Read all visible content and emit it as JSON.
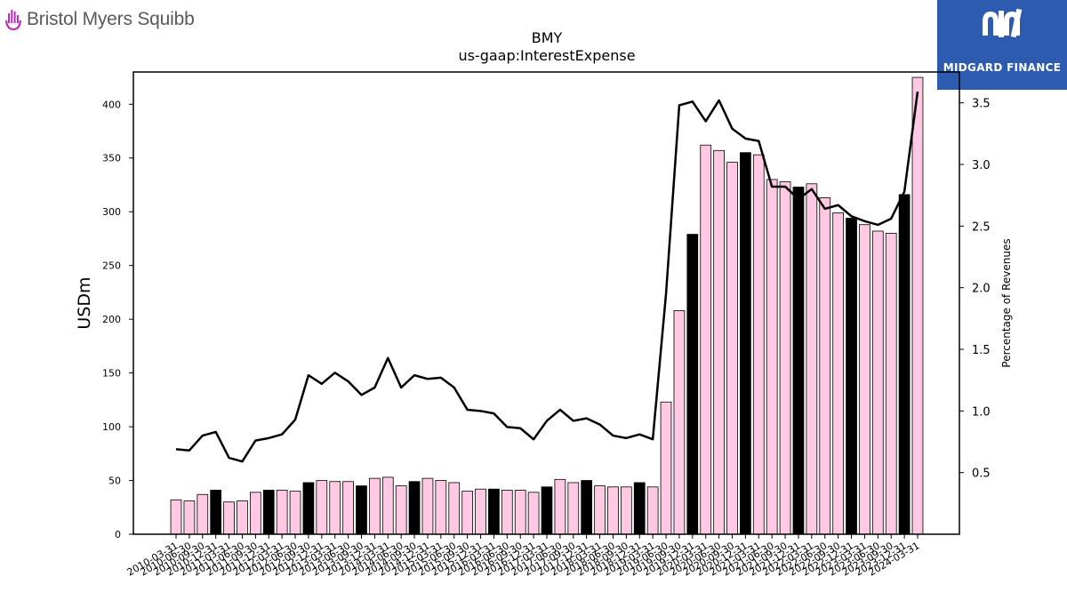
{
  "branding": {
    "company_logo_text": "Bristol Myers Squibb",
    "watermark_text": "MIDGARD FINANCE",
    "company_accent": "#be2bbb",
    "watermark_bg": "#2d5bb0"
  },
  "chart_data": {
    "type": "bar",
    "title": "BMY",
    "subtitle": "us-gaap:InterestExpense",
    "ylabel": "USDm",
    "y2label": "Percentage of Revenues",
    "ylim": [
      0,
      430
    ],
    "y2lim": [
      0.0,
      3.75
    ],
    "yticks": [
      0,
      50,
      100,
      150,
      200,
      250,
      300,
      350,
      400
    ],
    "y2ticks": [
      0.5,
      1.0,
      1.5,
      2.0,
      2.5,
      3.0,
      3.5
    ],
    "y2tick_labels": [
      "0.5",
      "1.0",
      "1.5",
      "2.0",
      "2.5",
      "3.0",
      "3.5"
    ],
    "grid": false,
    "bar_color_quarter": "#ffc8e3",
    "bar_color_fiscal_year_end": "#000000",
    "line_color": "#000000",
    "categories": [
      "2010-03-31",
      "2010-06-30",
      "2010-09-30",
      "2010-12-31",
      "2011-03-31",
      "2011-06-30",
      "2011-09-30",
      "2011-12-31",
      "2012-03-31",
      "2012-06-30",
      "2012-09-30",
      "2012-12-31",
      "2013-03-31",
      "2013-06-30",
      "2013-09-30",
      "2013-12-31",
      "2014-03-31",
      "2014-06-30",
      "2014-09-30",
      "2014-12-31",
      "2015-03-31",
      "2015-06-30",
      "2015-09-30",
      "2015-12-31",
      "2016-03-31",
      "2016-06-30",
      "2016-09-30",
      "2016-12-31",
      "2017-03-31",
      "2017-06-30",
      "2017-09-30",
      "2017-12-31",
      "2018-03-31",
      "2018-06-30",
      "2018-09-30",
      "2018-12-31",
      "2019-03-31",
      "2019-06-30",
      "2019-09-30",
      "2019-12-31",
      "2020-03-31",
      "2020-06-30",
      "2020-09-30",
      "2020-12-31",
      "2021-03-31",
      "2021-06-30",
      "2021-09-30",
      "2021-12-31",
      "2022-03-31",
      "2022-06-30",
      "2022-09-30",
      "2022-12-31",
      "2023-03-31",
      "2023-06-30",
      "2023-09-30",
      "2023-12-31",
      "2024-03-31"
    ],
    "tick_labels": [
      "2010-03-31",
      "2010-06-30",
      "2010-09-30",
      "2010-12-31",
      "2011-03-31",
      "2011-06-30",
      "2011-09-30",
      "2011-12-31",
      "2012-03-31",
      "2012-06-30",
      "2012-09-30",
      "2012-12-31",
      "2013-03-31",
      "2013-06-30",
      "2013-09-30",
      "2013-12-31",
      "2014-03-31",
      "2014-06-30",
      "2014-09-30",
      "2014-12-31",
      "2015-03-31",
      "2015-06-30",
      "2015-09-30",
      "2015-12-31",
      "2016-03-31",
      "2016-06-30",
      "2016-09-30",
      "2016-12-31",
      "2017-03-31",
      "2017-06-30",
      "2017-09-30",
      "2017-12-31",
      "2018-03-31",
      "2018-06-30",
      "2018-09-30",
      "2018-12-31",
      "2019-03-31",
      "2019-06-30",
      "2019-09-30",
      "2019-12-31",
      "2020-03-31",
      "2020-06-30",
      "2020-09-30",
      "2020-12-31",
      "2021-03-31",
      "2021-06-30",
      "2021-09-30",
      "2021-12-31",
      "2022-03-31",
      "2022-06-30",
      "2022-09-30",
      "2022-12-31",
      "2023-03-31",
      "2023-06-30",
      "2023-09-30",
      "2023-12-31",
      "2024-03-31"
    ],
    "fiscal_year_end": [
      false,
      false,
      false,
      true,
      false,
      false,
      false,
      true,
      false,
      false,
      true,
      false,
      false,
      false,
      true,
      false,
      false,
      false,
      true,
      false,
      false,
      false,
      false,
      false,
      true,
      false,
      false,
      false,
      true,
      false,
      false,
      true,
      false,
      false,
      false,
      true,
      false,
      false,
      false,
      true,
      false,
      false,
      false,
      true,
      false,
      false,
      false,
      true,
      false,
      false,
      false,
      true,
      false,
      false,
      false,
      true,
      false
    ],
    "series": [
      {
        "values": [
          32,
          31,
          37,
          41,
          30,
          31,
          39,
          41,
          41,
          40,
          48,
          50,
          49,
          49,
          45,
          52,
          53,
          45,
          49,
          52,
          50,
          48,
          40,
          42,
          42,
          41,
          41,
          39,
          44,
          51,
          48,
          50,
          45,
          44,
          44,
          48,
          44,
          123,
          208,
          279,
          362,
          357,
          346,
          355,
          353,
          330,
          328,
          323,
          326,
          313,
          299,
          294,
          288,
          282,
          280,
          316,
          425
        ]
      },
      {
        "axis": "right",
        "values": [
          0.69,
          0.68,
          0.8,
          0.83,
          0.62,
          0.59,
          0.76,
          0.78,
          0.81,
          0.93,
          1.29,
          1.22,
          1.31,
          1.24,
          1.13,
          1.19,
          1.43,
          1.19,
          1.29,
          1.26,
          1.27,
          1.19,
          1.01,
          1.0,
          0.98,
          0.87,
          0.86,
          0.77,
          0.92,
          1.01,
          0.92,
          0.94,
          0.89,
          0.8,
          0.78,
          0.81,
          0.77,
          1.95,
          3.48,
          3.51,
          3.35,
          3.52,
          3.29,
          3.21,
          3.19,
          2.82,
          2.82,
          2.72,
          2.8,
          2.64,
          2.67,
          2.58,
          2.54,
          2.51,
          2.56,
          2.78,
          3.59
        ]
      }
    ]
  }
}
